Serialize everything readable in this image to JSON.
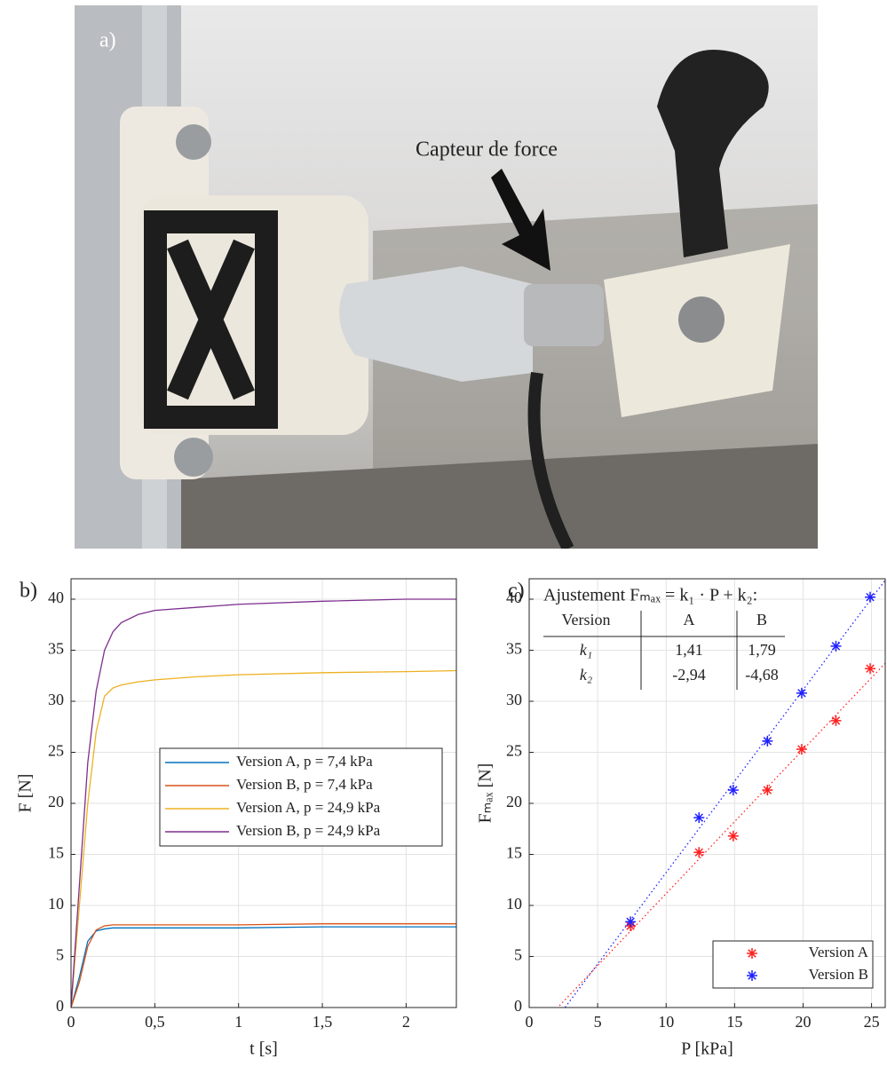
{
  "photo": {
    "label": "a)",
    "annotation": "Capteur de force"
  },
  "chart_data": [
    {
      "type": "line",
      "panel_label": "b)",
      "xlabel": "t [s]",
      "ylabel": "F [N]",
      "x": [
        0,
        0.05,
        0.1,
        0.15,
        0.2,
        0.25,
        0.3,
        0.4,
        0.5,
        0.75,
        1,
        1.5,
        2,
        2.3
      ],
      "series": [
        {
          "name": "Version A, p = 7,4 kPa",
          "color": "#0072BD",
          "values": [
            0,
            3,
            6.5,
            7.5,
            7.7,
            7.8,
            7.8,
            7.8,
            7.8,
            7.8,
            7.8,
            7.9,
            7.9,
            7.9
          ]
        },
        {
          "name": "Version B, p = 7,4 kPa",
          "color": "#D95319",
          "values": [
            0,
            2.5,
            6,
            7.6,
            8,
            8.1,
            8.1,
            8.1,
            8.1,
            8.1,
            8.1,
            8.2,
            8.2,
            8.2
          ]
        },
        {
          "name": "Version A, p = 24,9 kPa",
          "color": "#EDB120",
          "values": [
            0,
            10,
            20,
            27,
            30.5,
            31.3,
            31.6,
            31.9,
            32.1,
            32.4,
            32.6,
            32.8,
            32.9,
            33
          ]
        },
        {
          "name": "Version B, p = 24,9 kPa",
          "color": "#7E2F8E",
          "values": [
            0,
            12,
            24,
            31,
            35,
            36.8,
            37.7,
            38.5,
            38.9,
            39.2,
            39.5,
            39.8,
            40,
            40
          ]
        }
      ],
      "xlim": [
        0,
        2.3
      ],
      "ylim": [
        0,
        42
      ],
      "xticks": [
        0,
        {
          "value": 0.5,
          "label": "0,5"
        },
        1,
        {
          "value": 1.5,
          "label": "1,5"
        },
        2
      ],
      "yticks": [
        0,
        5,
        10,
        15,
        20,
        25,
        30,
        35,
        40
      ],
      "grid": true,
      "legend": "east"
    },
    {
      "type": "scatter",
      "panel_label": "c)",
      "xlabel": "P [kPa]",
      "ylabel": "Fₘₐₓ [N]",
      "series": [
        {
          "name": "Version A",
          "color": "#ff2020",
          "x": [
            7.4,
            12.4,
            14.9,
            17.4,
            19.9,
            22.4,
            24.9
          ],
          "values": [
            8.0,
            15.2,
            16.8,
            21.3,
            25.3,
            28.1,
            33.2
          ]
        },
        {
          "name": "Version B",
          "color": "#2020ff",
          "x": [
            7.4,
            12.4,
            14.9,
            17.4,
            19.9,
            22.4,
            24.9
          ],
          "values": [
            8.4,
            18.6,
            21.3,
            26.1,
            30.8,
            35.4,
            40.2
          ]
        }
      ],
      "fit": {
        "title": "Ajustement Fₘₐₓ = k₁ · P + k₂:",
        "columns": [
          "Version",
          "A",
          "B"
        ],
        "rows": [
          {
            "label": "k₁",
            "values": [
              1.41,
              1.79
            ],
            "value_labels": [
              "1,41",
              "1,79"
            ]
          },
          {
            "label": "k₂",
            "values": [
              -2.94,
              -4.68
            ],
            "value_labels": [
              "-2,94",
              "-4,68"
            ]
          }
        ]
      },
      "xlim": [
        0,
        26
      ],
      "ylim": [
        0,
        42
      ],
      "xticks": [
        0,
        5,
        10,
        15,
        20,
        25
      ],
      "yticks": [
        0,
        5,
        10,
        15,
        20,
        25,
        30,
        35,
        40
      ],
      "grid": true,
      "legend": "southeast"
    }
  ]
}
